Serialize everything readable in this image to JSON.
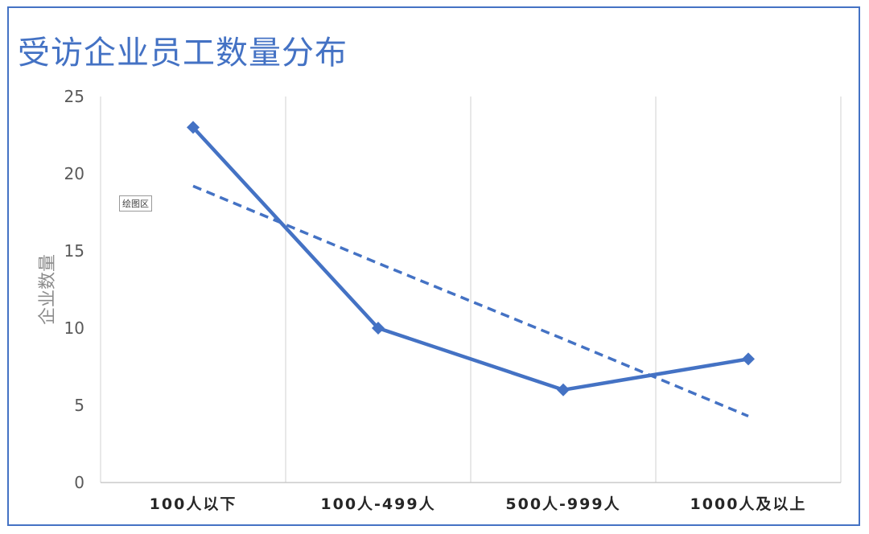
{
  "colors": {
    "frame": "#4472c4",
    "series": "#4472c4",
    "grid": "#d9d9d9",
    "axis": "#bfbfbf"
  },
  "plot_area_tag": "绘图区",
  "chart_data": {
    "type": "line",
    "title": "受访企业员工数量分布",
    "ylabel": "企业数量",
    "xlabel": "",
    "categories": [
      "100人以下",
      "100人-499人",
      "500人-999人",
      "1000人及以上"
    ],
    "category_labels": [
      "100人以下",
      "100人-499人",
      "500人-999人",
      "1000人及以上"
    ],
    "series": [
      {
        "values": [
          23,
          10,
          6,
          8
        ],
        "marker": "diamond",
        "style": "solid"
      }
    ],
    "trendline": {
      "type": "linear",
      "style": "dashed",
      "values": [
        19.2,
        14.2,
        9.3,
        4.3
      ]
    },
    "ylim": [
      0,
      25
    ],
    "yticks": [
      0,
      5,
      10,
      15,
      20,
      25
    ],
    "grid": "vertical",
    "legend": "none"
  }
}
